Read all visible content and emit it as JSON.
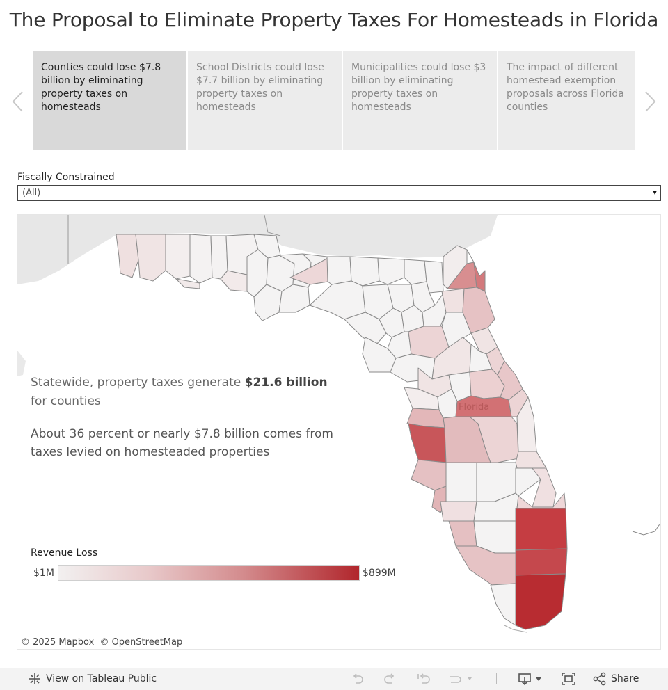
{
  "page_title": "The Proposal to Eliminate Property Taxes For Homesteads in Florida",
  "story_points": [
    {
      "label": "Counties could lose $7.8 billion by eliminating property taxes on homesteads",
      "active": true
    },
    {
      "label": "School Districts could lose $7.7 billion by eliminating property taxes on homesteads",
      "active": false
    },
    {
      "label": "Municipalities could lose $3 billion by eliminating property taxes on homesteads",
      "active": false
    },
    {
      "label": "The impact of different homestead exemption proposals across Florida counties",
      "active": false
    }
  ],
  "icons": {
    "prev": "chevron-left-icon",
    "next": "chevron-right-icon"
  },
  "filter": {
    "label": "Fiscally Constrained",
    "value": "(All)"
  },
  "map": {
    "statement1_prefix": "Statewide, property taxes generate ",
    "statement1_bold": "$21.6 billion",
    "statement1_suffix": "for counties",
    "statement2": "About 36 percent or nearly $7.8 billion comes from taxes levied on homesteaded properties",
    "state_label": "Florida",
    "legend_title": "Revenue Loss",
    "legend_min": "$1M",
    "legend_max": "$899M",
    "attribution_mapbox": "© 2025 Mapbox",
    "attribution_osm": "© OpenStreetMap",
    "colors": {
      "low": "#f2f0f0",
      "mid": "#e2b6b8",
      "high": "#b1262c"
    }
  },
  "toolbar": {
    "view_label": "View on Tableau Public",
    "share_label": "Share"
  }
}
